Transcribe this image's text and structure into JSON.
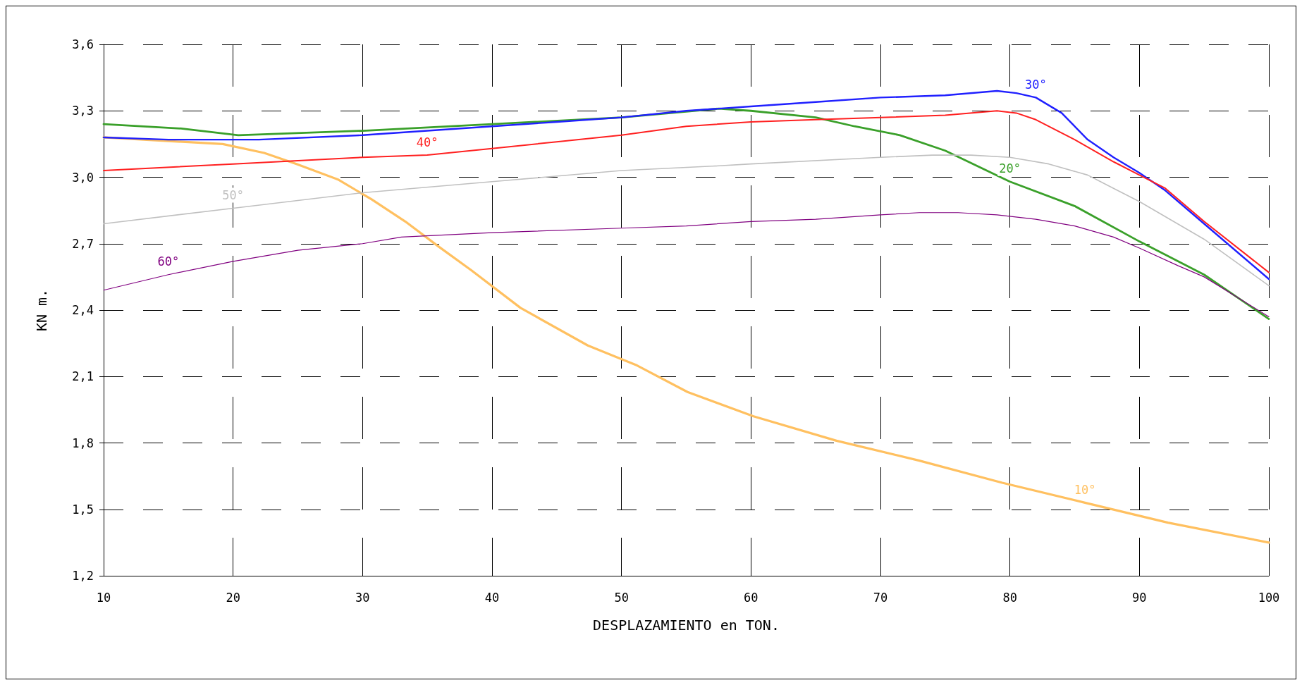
{
  "chart_data": {
    "type": "line",
    "xlabel": "DESPLAZAMIENTO en TON.",
    "ylabel": "KN m.",
    "xlim": [
      10,
      100
    ],
    "xticks": [
      10,
      20,
      30,
      40,
      50,
      60,
      70,
      80,
      90,
      100
    ],
    "ylim": [
      1.2,
      3.6
    ],
    "yticks": [
      {
        "value": 1.2,
        "label": "1,2"
      },
      {
        "value": 1.5,
        "label": "1,5"
      },
      {
        "value": 1.8,
        "label": "1,8"
      },
      {
        "value": 2.1,
        "label": "2,1"
      },
      {
        "value": 2.4,
        "label": "2,4"
      },
      {
        "value": 2.7,
        "label": "2,7"
      },
      {
        "value": 3.0,
        "label": "3,0"
      },
      {
        "value": 3.3,
        "label": "3,3"
      },
      {
        "value": 3.6,
        "label": "3,6"
      }
    ],
    "grid": true,
    "legend": false,
    "marker": "none",
    "line_style": "solid",
    "series": [
      {
        "name": "10°",
        "color": "#ffc060",
        "x": [
          10,
          19.2,
          22.4,
          24.9,
          28.1,
          30.7,
          33.3,
          35.8,
          38.4,
          42.2,
          47.4,
          51.2,
          55.1,
          60.2,
          66.6,
          73,
          79.4,
          85.8,
          92.2,
          100
        ],
        "values": [
          3.18,
          3.15,
          3.11,
          3.06,
          2.99,
          2.9,
          2.8,
          2.69,
          2.58,
          2.41,
          2.24,
          2.15,
          2.03,
          1.92,
          1.81,
          1.72,
          1.62,
          1.53,
          1.44,
          1.35
        ]
      },
      {
        "name": "20°",
        "color": "#3aa02a",
        "x": [
          10,
          16,
          20.4,
          30,
          40,
          50,
          57.5,
          60,
          65,
          68,
          71.5,
          75,
          80,
          85,
          90,
          95,
          100
        ],
        "values": [
          3.24,
          3.22,
          3.19,
          3.21,
          3.24,
          3.27,
          3.31,
          3.3,
          3.27,
          3.23,
          3.19,
          3.12,
          2.98,
          2.87,
          2.71,
          2.56,
          2.36
        ]
      },
      {
        "name": "30°",
        "color": "#2020ff",
        "x": [
          10,
          15,
          22,
          30,
          35,
          40,
          45,
          50,
          55,
          60,
          65,
          70,
          75,
          79,
          80.5,
          82,
          84,
          86,
          88,
          90,
          92,
          95,
          100
        ],
        "values": [
          3.18,
          3.17,
          3.17,
          3.19,
          3.21,
          3.23,
          3.25,
          3.27,
          3.3,
          3.32,
          3.34,
          3.36,
          3.37,
          3.39,
          3.38,
          3.36,
          3.29,
          3.17,
          3.09,
          3.02,
          2.94,
          2.79,
          2.54
        ]
      },
      {
        "name": "40°",
        "color": "#ff2020",
        "x": [
          10,
          20,
          30,
          35,
          40,
          45,
          50,
          55,
          60,
          65,
          70,
          75,
          79,
          80.5,
          82,
          85,
          88,
          90,
          92,
          95,
          100
        ],
        "values": [
          3.03,
          3.06,
          3.09,
          3.1,
          3.13,
          3.16,
          3.19,
          3.23,
          3.25,
          3.26,
          3.27,
          3.28,
          3.3,
          3.29,
          3.26,
          3.17,
          3.07,
          3.01,
          2.95,
          2.8,
          2.57
        ]
      },
      {
        "name": "50°",
        "color": "#c0c0c0",
        "x": [
          10,
          20,
          30,
          40,
          50,
          57,
          60,
          70,
          74,
          77,
          80,
          83,
          86,
          88,
          90,
          95,
          100
        ],
        "values": [
          2.79,
          2.86,
          2.93,
          2.98,
          3.03,
          3.05,
          3.06,
          3.09,
          3.1,
          3.1,
          3.09,
          3.06,
          3.01,
          2.95,
          2.89,
          2.72,
          2.51
        ]
      },
      {
        "name": "60°",
        "color": "#800080",
        "x": [
          10,
          15,
          20,
          25,
          30,
          33,
          40,
          50,
          55,
          60,
          65,
          70,
          73,
          76,
          79,
          82,
          85,
          88,
          90,
          93,
          95,
          100
        ],
        "values": [
          2.49,
          2.56,
          2.62,
          2.67,
          2.7,
          2.73,
          2.75,
          2.77,
          2.78,
          2.8,
          2.81,
          2.83,
          2.84,
          2.84,
          2.83,
          2.81,
          2.78,
          2.73,
          2.68,
          2.6,
          2.55,
          2.37
        ]
      }
    ]
  }
}
